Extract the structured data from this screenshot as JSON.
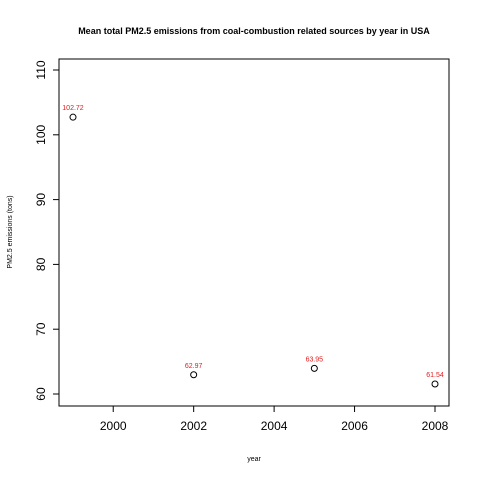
{
  "colors": {
    "background": "#ffffff",
    "axis": "#000000",
    "point": "#000000",
    "data_label": "#e31a1c"
  },
  "chart_data": {
    "type": "scatter",
    "title": "Mean total PM2.5 emissions from coal-combustion related sources by year in USA",
    "xlabel": "year",
    "ylabel": "PM2.5 emissions (tons)",
    "xlim": [
      1999,
      2008
    ],
    "ylim": [
      60,
      110
    ],
    "xticks": [
      "2000",
      "2002",
      "2004",
      "2006",
      "2008"
    ],
    "yticks": [
      "60",
      "70",
      "80",
      "90",
      "100",
      "110"
    ],
    "grid": false,
    "marker": "open-circle",
    "x": [
      1999,
      2002,
      2005,
      2008
    ],
    "y": [
      102.72,
      62.97,
      63.95,
      61.54
    ],
    "data_labels": [
      "102.72",
      "62.97",
      "63.95",
      "61.54"
    ]
  }
}
